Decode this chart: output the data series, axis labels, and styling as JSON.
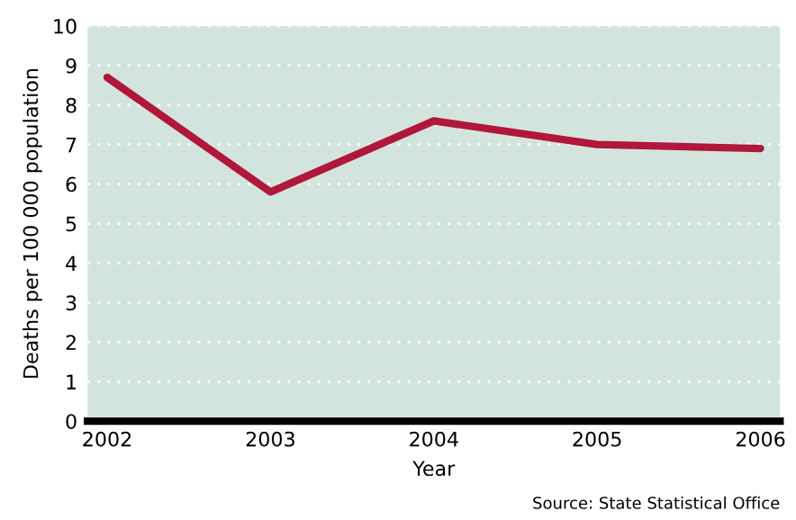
{
  "chart_data": {
    "type": "line",
    "categories": [
      "2002",
      "2003",
      "2004",
      "2005",
      "2006"
    ],
    "series": [
      {
        "color": "#b0173a",
        "values": [
          8.7,
          5.8,
          7.6,
          7.0,
          6.9
        ]
      }
    ],
    "ylim": [
      0,
      10
    ],
    "yticks": [
      0,
      1,
      2,
      3,
      4,
      5,
      6,
      7,
      8,
      9,
      10
    ],
    "grid": "y",
    "line_style": "solid",
    "xlabel": "Year",
    "ylabel": "Deaths per 100 000 population",
    "annotations": [
      "Source: State Statistical Office"
    ]
  }
}
